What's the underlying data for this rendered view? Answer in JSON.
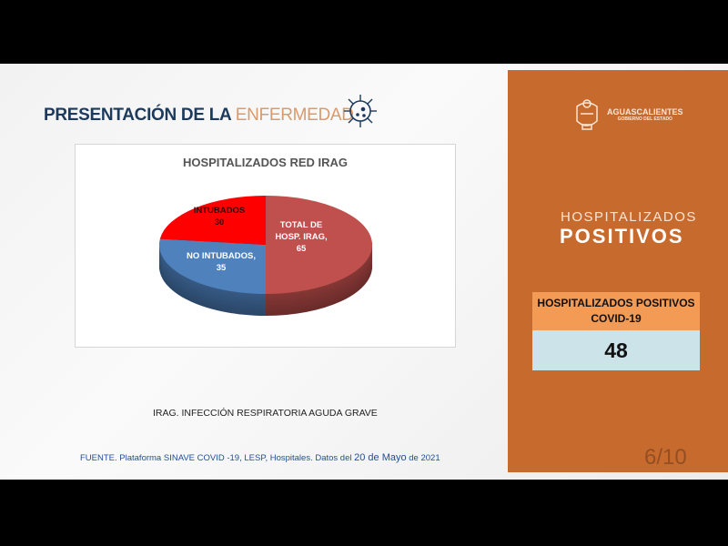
{
  "header": {
    "title_bold": "PRESENTACIÓN DE LA",
    "title_light": "ENFERMEDAD",
    "icon": "virus-icon"
  },
  "chart_data": {
    "type": "pie",
    "title": "HOSPITALIZADOS RED IRAG",
    "style": "3d",
    "slices": [
      {
        "label": "TOTAL DE HOSP. IRAG",
        "value": 65,
        "color": "#c0504d",
        "label_lines": [
          "TOTAL DE",
          "HOSP. IRAG,",
          "65"
        ]
      },
      {
        "label": "NO INTUBADOS",
        "value": 35,
        "color": "#4f81bd",
        "label_lines": [
          "NO INTUBADOS,",
          "35"
        ]
      },
      {
        "label": "INTUBADOS",
        "value": 30,
        "color": "#ff0000",
        "label_lines": [
          "INTUBADOS",
          "30"
        ]
      }
    ]
  },
  "note": "IRAG. INFECCIÓN RESPIRATORIA AGUDA GRAVE",
  "source": {
    "text": "FUENTE. Plataforma SINAVE COVID -19, LESP, Hospitales. Datos del",
    "date": "20 de Mayo",
    "year": "de 2021"
  },
  "side": {
    "logo_name": "AGUASCALIENTES",
    "logo_sub": "GOBIERNO DEL ESTADO",
    "heading_light": "HOSPITALIZADOS",
    "heading_bold": "POSITIVOS",
    "box_label": "HOSPITALIZADOS POSITIVOS COVID-19",
    "box_value": "48",
    "page": "6/10",
    "color": "#c76a2e"
  }
}
